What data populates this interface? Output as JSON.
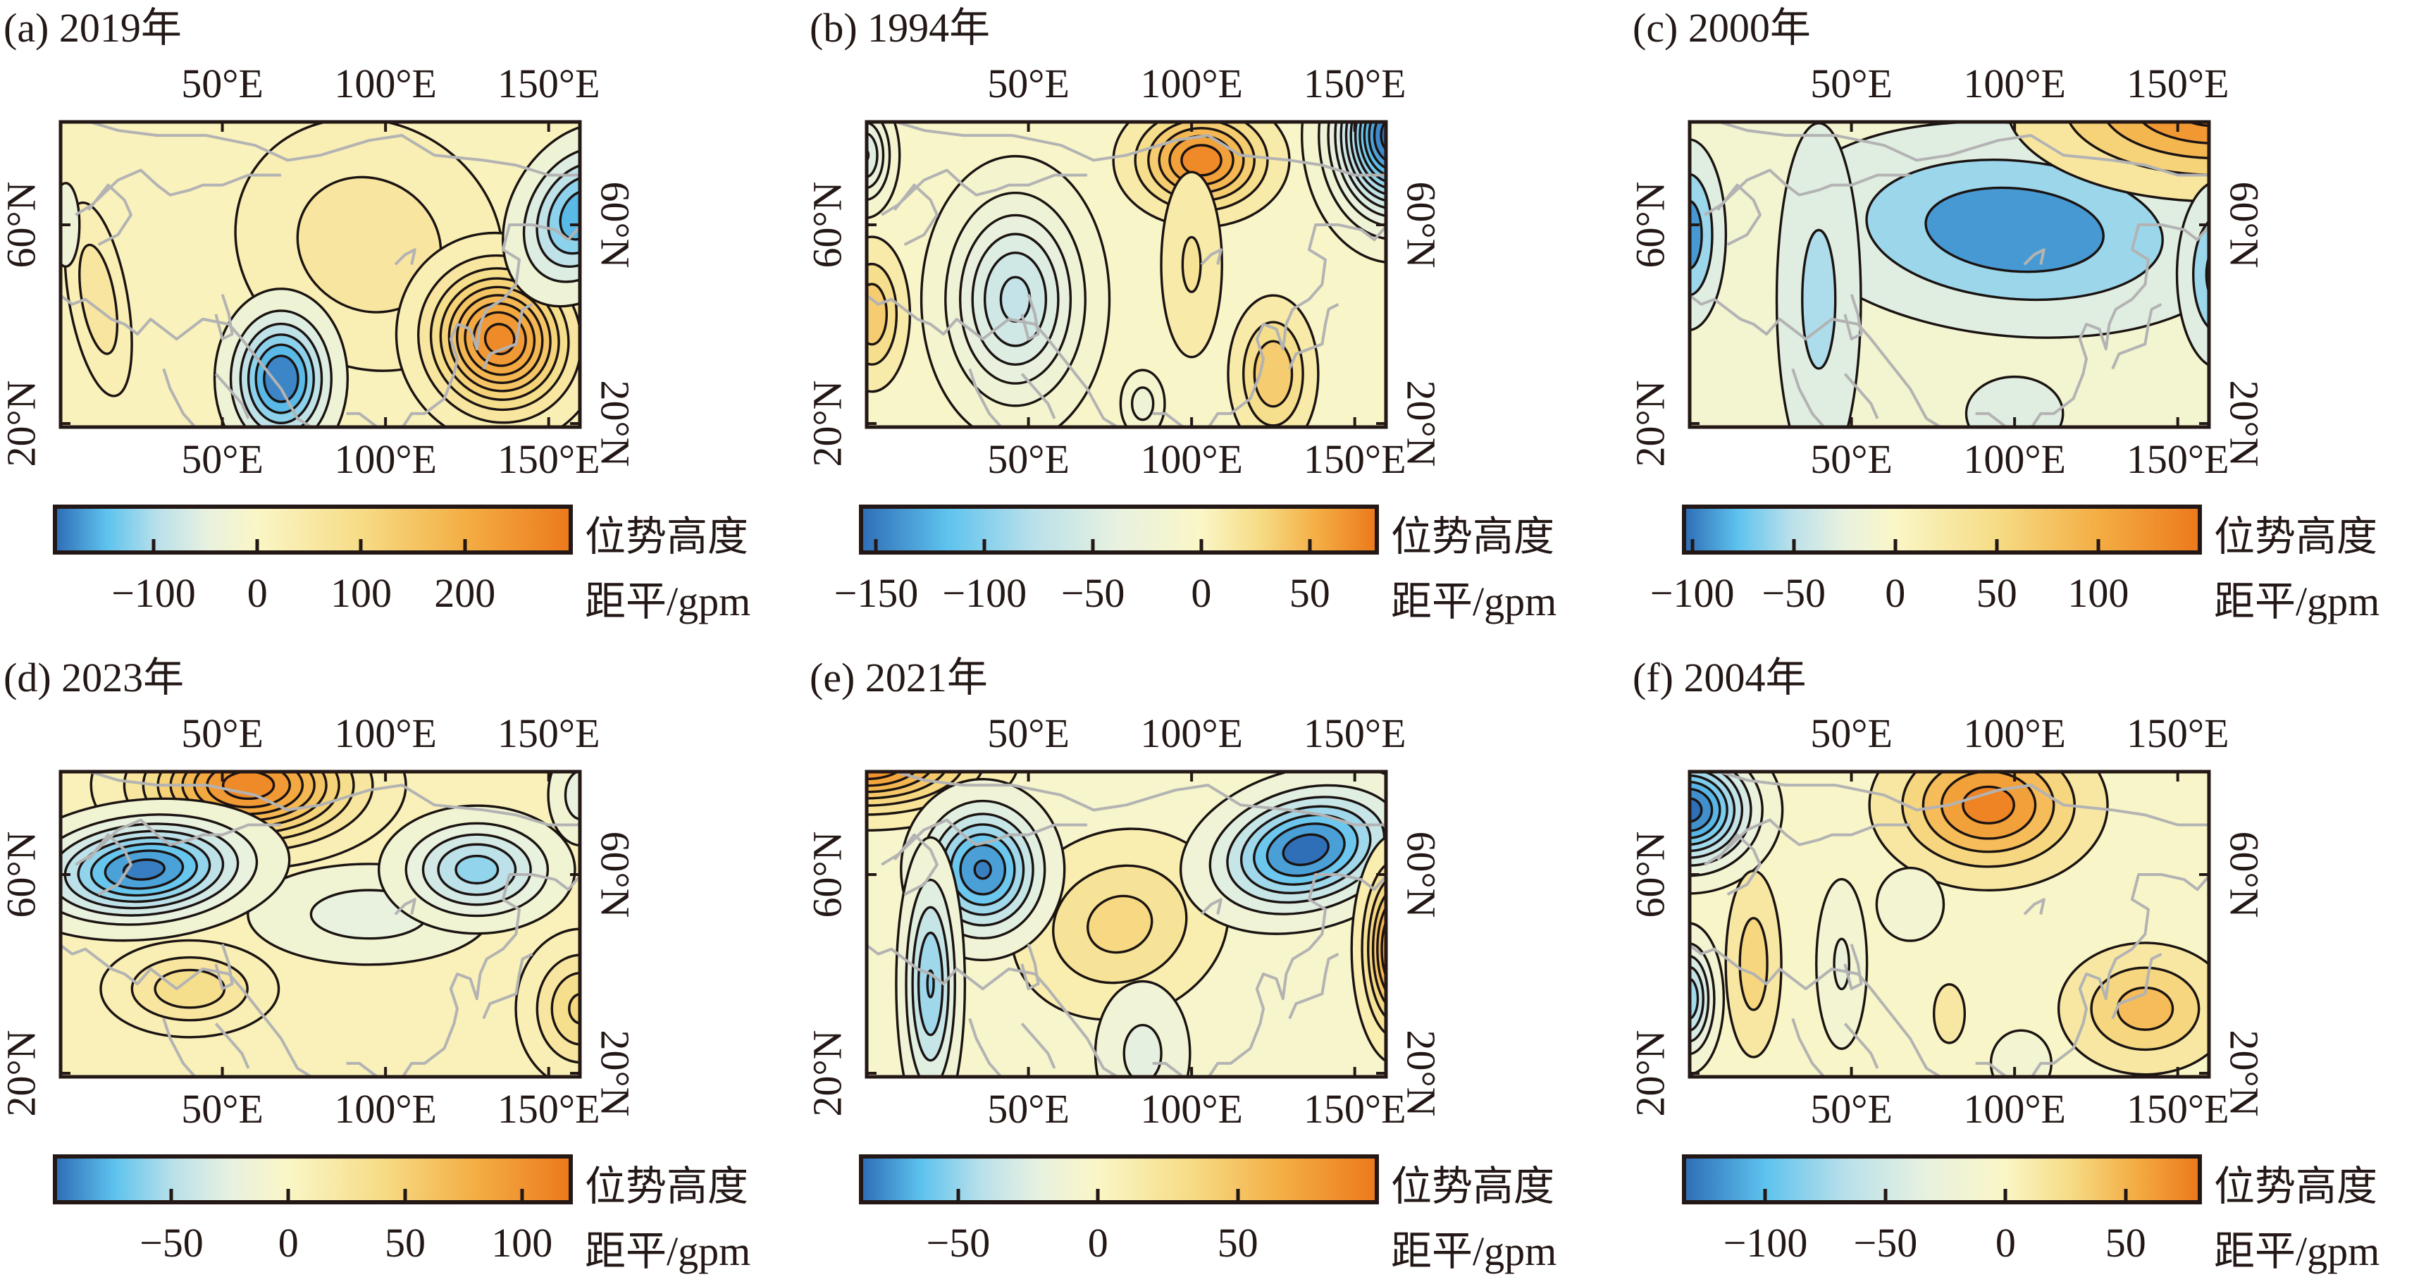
{
  "figure": {
    "unit_line1": "位势高度",
    "unit_line2": "距平/gpm"
  },
  "colormap": [
    "#2f6fb8",
    "#5ec3ee",
    "#b9e0ea",
    "#e8f1e0",
    "#faf6c6",
    "#f6dc86",
    "#f4ae44",
    "#ec7a1c"
  ],
  "chart_data": [
    {
      "type": "heatmap",
      "title": "(a) 2019年",
      "lon_ticks": [
        "50°E",
        "100°E",
        "150°E"
      ],
      "lon_tick_values": [
        50,
        100,
        150
      ],
      "lat_ticks": [
        "60°N",
        "20°N"
      ],
      "lat_tick_values": [
        60,
        20
      ],
      "xlim": [
        0,
        160
      ],
      "ylim": [
        19,
        81
      ],
      "colorbar": {
        "ticks": [
          -100,
          0,
          100,
          200
        ],
        "tick_labels": [
          "−100",
          "0",
          "100",
          "200"
        ],
        "range": [
          -193,
          300
        ]
      },
      "contour_interval": 30,
      "background": 15,
      "features": [
        {
          "lon": 95,
          "lat": 56,
          "value": 70,
          "slon": 24,
          "slat": 14,
          "rot": 30
        },
        {
          "lon": 12,
          "lat": 45,
          "value": 75,
          "slon": 5,
          "slat": 11,
          "rot": -10
        },
        {
          "lon": 68,
          "lat": 29,
          "value": -195,
          "slon": 9,
          "slat": 8,
          "rot": 0
        },
        {
          "lon": 135,
          "lat": 37,
          "value": 270,
          "slon": 13,
          "slat": 9,
          "rot": -30
        },
        {
          "lon": 160,
          "lat": 62,
          "value": -160,
          "slon": 10,
          "slat": 9,
          "rot": 30
        },
        {
          "lon": 2,
          "lat": 60,
          "value": -40,
          "slon": 3,
          "slat": 6,
          "rot": 0
        }
      ]
    },
    {
      "type": "heatmap",
      "title": "(b) 1994年",
      "lon_ticks": [
        "50°E",
        "100°E",
        "150°E"
      ],
      "lon_tick_values": [
        50,
        100,
        150
      ],
      "lat_ticks": [
        "60°N",
        "20°N"
      ],
      "lat_tick_values": [
        60,
        20
      ],
      "xlim": [
        0,
        160
      ],
      "ylim": [
        19,
        81
      ],
      "colorbar": {
        "ticks": [
          -150,
          -100,
          -50,
          0,
          50
        ],
        "tick_labels": [
          "−150",
          "−100",
          "−50",
          "0",
          "50"
        ],
        "range": [
          -156,
          80
        ]
      },
      "contour_interval": 12,
      "background": -5,
      "features": [
        {
          "lon": 103,
          "lat": 73,
          "value": 75,
          "slon": 12,
          "slat": 6,
          "rot": 0
        },
        {
          "lon": 100,
          "lat": 52,
          "value": 20,
          "slon": 6,
          "slat": 12,
          "rot": 0
        },
        {
          "lon": 46,
          "lat": 45,
          "value": -70,
          "slon": 13,
          "slat": 13,
          "rot": 0
        },
        {
          "lon": 162,
          "lat": 78,
          "value": -160,
          "slon": 11,
          "slat": 10,
          "rot": 0
        },
        {
          "lon": 125,
          "lat": 30,
          "value": 42,
          "slon": 7,
          "slat": 8,
          "rot": 0
        },
        {
          "lon": 2,
          "lat": 42,
          "value": 40,
          "slon": 6,
          "slat": 8,
          "rot": 0
        },
        {
          "lon": 0,
          "lat": 74,
          "value": -55,
          "slon": 5,
          "slat": 6,
          "rot": 0
        },
        {
          "lon": 85,
          "lat": 24,
          "value": -25,
          "slon": 4,
          "slat": 4,
          "rot": 0
        }
      ]
    },
    {
      "type": "heatmap",
      "title": "(c) 2000年",
      "lon_ticks": [
        "50°E",
        "100°E",
        "150°E"
      ],
      "lon_tick_values": [
        50,
        100,
        150
      ],
      "lat_ticks": [
        "60°N",
        "20°N"
      ],
      "lat_tick_values": [
        60,
        20
      ],
      "xlim": [
        0,
        160
      ],
      "ylim": [
        19,
        81
      ],
      "colorbar": {
        "ticks": [
          -100,
          -50,
          0,
          50,
          100
        ],
        "tick_labels": [
          "−100",
          "−50",
          "0",
          "50",
          "100"
        ],
        "range": [
          -103,
          149
        ]
      },
      "contour_interval": 30,
      "background": -10,
      "features": [
        {
          "lon": 100,
          "lat": 59,
          "value": -100,
          "slon": 36,
          "slat": 11,
          "rot": 5
        },
        {
          "lon": 40,
          "lat": 45,
          "value": -55,
          "slon": 8,
          "slat": 22,
          "rot": 0
        },
        {
          "lon": 162,
          "lat": 84,
          "value": 150,
          "slon": 30,
          "slat": 9,
          "rot": 0
        },
        {
          "lon": 163,
          "lat": 50,
          "value": -90,
          "slon": 7,
          "slat": 10,
          "rot": 0
        },
        {
          "lon": 0,
          "lat": 58,
          "value": -95,
          "slon": 6,
          "slat": 10,
          "rot": 0
        },
        {
          "lon": 100,
          "lat": 22,
          "value": -45,
          "slon": 10,
          "slat": 5,
          "rot": 0
        }
      ]
    },
    {
      "type": "heatmap",
      "title": "(d) 2023年",
      "lon_ticks": [
        "50°E",
        "100°E",
        "150°E"
      ],
      "lon_tick_values": [
        50,
        100,
        150
      ],
      "lat_ticks": [
        "60°N",
        "20°N"
      ],
      "lat_tick_values": [
        60,
        20
      ],
      "xlim": [
        0,
        160
      ],
      "ylim": [
        19,
        81
      ],
      "colorbar": {
        "ticks": [
          -50,
          0,
          50,
          100
        ],
        "tick_labels": [
          "−50",
          "0",
          "50",
          "100"
        ],
        "range": [
          -99,
          120
        ]
      },
      "contour_interval": 12,
      "background": 8,
      "features": [
        {
          "lon": 58,
          "lat": 78,
          "value": 110,
          "slon": 20,
          "slat": 7,
          "rot": 0
        },
        {
          "lon": 26,
          "lat": 61,
          "value": -95,
          "slon": 19,
          "slat": 6,
          "rot": -5
        },
        {
          "lon": 128,
          "lat": 61,
          "value": -60,
          "slon": 14,
          "slat": 6,
          "rot": 0
        },
        {
          "lon": 95,
          "lat": 52,
          "value": -25,
          "slon": 22,
          "slat": 6,
          "rot": 0
        },
        {
          "lon": 40,
          "lat": 37,
          "value": 40,
          "slon": 14,
          "slat": 5,
          "rot": 0
        },
        {
          "lon": 160,
          "lat": 33,
          "value": 45,
          "slon": 10,
          "slat": 8,
          "rot": 0
        },
        {
          "lon": 160,
          "lat": 76,
          "value": -25,
          "slon": 6,
          "slat": 6,
          "rot": 0
        }
      ]
    },
    {
      "type": "heatmap",
      "title": "(e) 2021年",
      "lon_ticks": [
        "50°E",
        "100°E",
        "150°E"
      ],
      "lon_tick_values": [
        50,
        100,
        150
      ],
      "lat_ticks": [
        "60°N",
        "20°N"
      ],
      "lat_tick_values": [
        60,
        20
      ],
      "xlim": [
        0,
        160
      ],
      "ylim": [
        19,
        81
      ],
      "colorbar": {
        "ticks": [
          -50,
          0,
          50
        ],
        "tick_labels": [
          "−50",
          "0",
          "50"
        ],
        "range": [
          -84,
          99
        ]
      },
      "contour_interval": 12,
      "background": -5,
      "features": [
        {
          "lon": 0,
          "lat": 83,
          "value": 95,
          "slon": 20,
          "slat": 6,
          "rot": 0
        },
        {
          "lon": 36,
          "lat": 61,
          "value": -80,
          "slon": 11,
          "slat": 8,
          "rot": 0
        },
        {
          "lon": 20,
          "lat": 38,
          "value": -55,
          "slon": 5,
          "slat": 14,
          "rot": 0
        },
        {
          "lon": 135,
          "lat": 65,
          "value": -85,
          "slon": 17,
          "slat": 7,
          "rot": -15
        },
        {
          "lon": 78,
          "lat": 50,
          "value": 35,
          "slon": 18,
          "slat": 10,
          "rot": -20
        },
        {
          "lon": 163,
          "lat": 45,
          "value": 90,
          "slon": 6,
          "slat": 10,
          "rot": 0
        },
        {
          "lon": 85,
          "lat": 24,
          "value": -22,
          "slon": 9,
          "slat": 9,
          "rot": 0
        }
      ]
    },
    {
      "type": "heatmap",
      "title": "(f) 2004年",
      "lon_ticks": [
        "50°E",
        "100°E",
        "150°E"
      ],
      "lon_tick_values": [
        50,
        100,
        150
      ],
      "lat_ticks": [
        "60°N",
        "20°N"
      ],
      "lat_tick_values": [
        60,
        20
      ],
      "xlim": [
        0,
        160
      ],
      "ylim": [
        19,
        81
      ],
      "colorbar": {
        "ticks": [
          -100,
          -50,
          0,
          50
        ],
        "tick_labels": [
          "−100",
          "−50",
          "0",
          "50"
        ],
        "range": [
          -133,
          80
        ]
      },
      "contour_interval": 15,
      "background": -3,
      "features": [
        {
          "lon": 0,
          "lat": 73,
          "value": -135,
          "slon": 12,
          "slat": 7,
          "rot": 0
        },
        {
          "lon": 92,
          "lat": 74,
          "value": 75,
          "slon": 17,
          "slat": 8,
          "rot": 0
        },
        {
          "lon": 140,
          "lat": 33,
          "value": 45,
          "slon": 14,
          "slat": 7,
          "rot": 0
        },
        {
          "lon": 0,
          "lat": 35,
          "value": -80,
          "slon": 5,
          "slat": 7,
          "rot": 0
        },
        {
          "lon": 20,
          "lat": 42,
          "value": 32,
          "slon": 5,
          "slat": 11,
          "rot": 0
        },
        {
          "lon": 47,
          "lat": 42,
          "value": -25,
          "slon": 5,
          "slat": 11,
          "rot": 0
        },
        {
          "lon": 68,
          "lat": 54,
          "value": -22,
          "slon": 7,
          "slat": 5,
          "rot": 0
        },
        {
          "lon": 80,
          "lat": 32,
          "value": 15,
          "slon": 4,
          "slat": 5,
          "rot": 0
        },
        {
          "lon": 102,
          "lat": 22,
          "value": -18,
          "slon": 7,
          "slat": 5,
          "rot": 0
        }
      ]
    }
  ],
  "coastlines": [
    [
      [
        8,
        81
      ],
      [
        18,
        79
      ],
      [
        30,
        78
      ],
      [
        45,
        78
      ],
      [
        60,
        76
      ],
      [
        70,
        73
      ],
      [
        80,
        74
      ],
      [
        95,
        77
      ],
      [
        105,
        78
      ],
      [
        115,
        74
      ],
      [
        130,
        73
      ],
      [
        140,
        72
      ],
      [
        150,
        70
      ],
      [
        160,
        70
      ]
    ],
    [
      [
        5,
        62
      ],
      [
        10,
        64
      ],
      [
        18,
        69
      ],
      [
        25,
        71
      ],
      [
        30,
        68
      ],
      [
        34,
        66
      ],
      [
        40,
        67
      ],
      [
        44,
        68
      ],
      [
        50,
        68
      ],
      [
        58,
        70
      ],
      [
        68,
        70
      ]
    ],
    [
      [
        12,
        56
      ],
      [
        18,
        58
      ],
      [
        22,
        62
      ],
      [
        20,
        65
      ],
      [
        15,
        68
      ],
      [
        9,
        63
      ]
    ],
    [
      [
        0,
        46
      ],
      [
        4,
        44
      ],
      [
        8,
        45
      ],
      [
        12,
        43
      ],
      [
        16,
        41
      ],
      [
        20,
        40
      ],
      [
        24,
        38
      ],
      [
        28,
        41
      ],
      [
        36,
        37
      ],
      [
        44,
        41
      ],
      [
        52,
        40
      ],
      [
        56,
        37
      ],
      [
        62,
        32
      ],
      [
        68,
        27
      ],
      [
        73,
        21
      ],
      [
        78,
        19
      ]
    ],
    [
      [
        32,
        31
      ],
      [
        34,
        27
      ],
      [
        38,
        22
      ],
      [
        42,
        19
      ]
    ],
    [
      [
        48,
        30
      ],
      [
        52,
        27
      ],
      [
        56,
        24
      ],
      [
        58,
        21
      ]
    ],
    [
      [
        88,
        22
      ],
      [
        92,
        22
      ],
      [
        98,
        19
      ]
    ],
    [
      [
        105,
        19
      ],
      [
        108,
        22
      ],
      [
        112,
        22
      ],
      [
        118,
        25
      ],
      [
        121,
        30
      ],
      [
        122,
        33
      ],
      [
        120,
        37
      ],
      [
        122,
        40
      ],
      [
        126,
        39
      ],
      [
        128,
        35
      ],
      [
        129,
        40
      ],
      [
        131,
        43
      ],
      [
        136,
        45
      ],
      [
        140,
        48
      ],
      [
        141,
        53
      ],
      [
        136,
        55
      ],
      [
        138,
        60
      ],
      [
        145,
        60
      ],
      [
        152,
        59
      ],
      [
        156,
        57
      ],
      [
        160,
        60
      ]
    ],
    [
      [
        130,
        31
      ],
      [
        132,
        34
      ],
      [
        136,
        35
      ],
      [
        140,
        36
      ],
      [
        141,
        40
      ],
      [
        142,
        43
      ],
      [
        145,
        44
      ]
    ],
    [
      [
        50,
        46
      ],
      [
        52,
        42
      ],
      [
        53,
        38
      ],
      [
        50,
        37
      ],
      [
        48,
        42
      ]
    ],
    [
      [
        103,
        52
      ],
      [
        106,
        54
      ],
      [
        109,
        55
      ],
      [
        108,
        52
      ]
    ]
  ]
}
